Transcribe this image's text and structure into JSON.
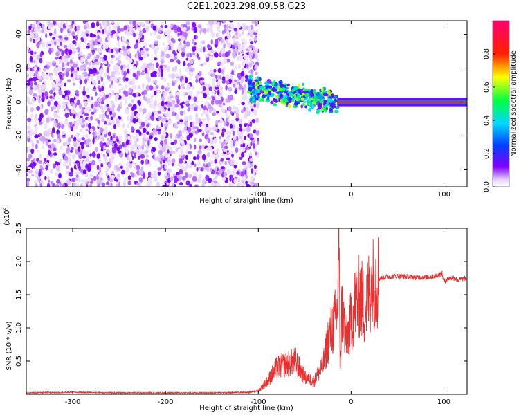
{
  "title": "C2E1.2023.298.09.58.G23",
  "chart_data": [
    {
      "type": "heatmap",
      "title": "C2E1.2023.298.09.58.G23",
      "xlabel": "Height of straight line (km)",
      "ylabel": "Frequency (Hz)",
      "xlim": [
        -350,
        125
      ],
      "ylim": [
        -50,
        48
      ],
      "x_ticks": [
        -300,
        -200,
        -100,
        0,
        100
      ],
      "y_ticks": [
        -40,
        -20,
        0,
        20,
        40
      ],
      "colorbar": {
        "label": "Normalized spectral amplitude",
        "range": [
          0,
          1
        ],
        "ticks": [
          0.0,
          0.2,
          0.4,
          0.6,
          0.8
        ],
        "colormap": "rainbow (violet-blue-cyan-green-yellow-red-magenta)"
      },
      "regions": [
        {
          "description": "broadband low-amplitude noise",
          "x_range": [
            -350,
            -100
          ],
          "freq_range": [
            -50,
            48
          ],
          "amplitude": "0.0-0.1"
        },
        {
          "description": "scattered patches near 0 Hz",
          "x_range": [
            -110,
            -15
          ],
          "freq_range": [
            -12,
            12
          ],
          "amplitude": "0.1-0.8"
        },
        {
          "description": "narrow line at 0 Hz",
          "x_range": [
            -15,
            125
          ],
          "freq_range": [
            -2,
            2
          ],
          "amplitude": "0.8-1.0"
        }
      ],
      "grid": false
    },
    {
      "type": "line",
      "xlabel": "Height of straight line (km)",
      "ylabel": "SNR (10 * v/v)",
      "yscale_label": "(x10",
      "yscale_exp": "4",
      "yscale_close": ")",
      "xlim": [
        -350,
        125
      ],
      "ylim": [
        0,
        2.5
      ],
      "x_ticks": [
        -300,
        -200,
        -100,
        0,
        100
      ],
      "y_ticks": [
        0.5,
        1.0,
        1.5,
        2.0,
        2.5
      ],
      "color": "#e83030",
      "series": [
        {
          "x": [
            -350,
            -300,
            -250,
            -200,
            -150,
            -110,
            -100,
            -90,
            -80,
            -70,
            -60,
            -50,
            -40,
            -30,
            -25,
            -20,
            -15,
            -13,
            -12,
            -10,
            -5,
            0,
            5,
            10,
            15,
            20,
            25,
            30,
            40,
            50,
            60,
            70,
            80,
            90,
            98,
            100,
            105,
            110,
            115,
            120,
            125
          ],
          "values": [
            0.02,
            0.03,
            0.02,
            0.02,
            0.02,
            0.03,
            0.05,
            0.2,
            0.4,
            0.45,
            0.5,
            0.25,
            0.2,
            0.45,
            0.8,
            1.0,
            1.2,
            2.5,
            0.3,
            1.3,
            0.8,
            1.1,
            1.4,
            1.5,
            1.25,
            1.6,
            1.7,
            1.74,
            1.77,
            1.78,
            1.77,
            1.76,
            1.76,
            1.78,
            1.82,
            1.7,
            1.74,
            1.76,
            1.72,
            1.74,
            1.74
          ]
        }
      ],
      "grid": false
    }
  ]
}
